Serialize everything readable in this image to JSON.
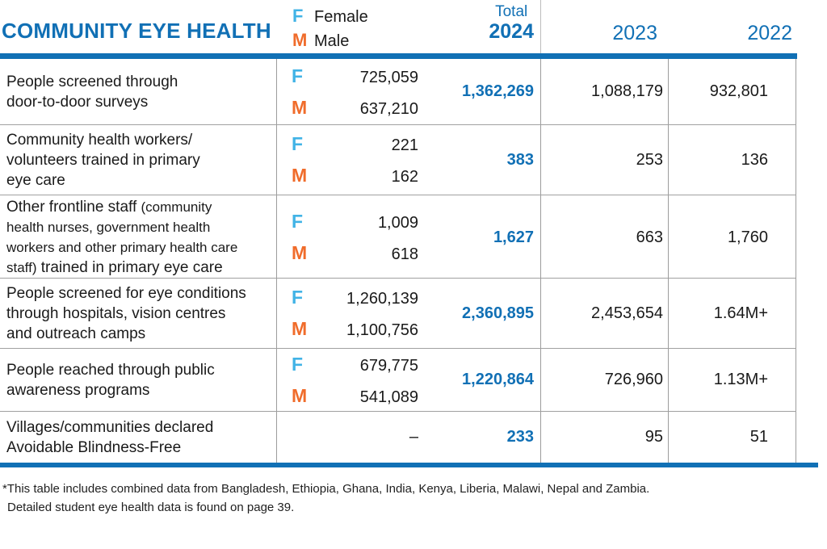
{
  "colors": {
    "brand_blue": "#1170B5",
    "female_cyan": "#41B3E6",
    "male_orange": "#F06C2B",
    "grid_gray": "#9C9C9C",
    "text_dark": "#1A1A1A"
  },
  "header": {
    "title": "COMMUNITY EYE HEALTH",
    "legend": {
      "f_letter": "F",
      "female_label": "Female",
      "m_letter": "M",
      "male_label": "Male"
    },
    "columns": {
      "total_label": "Total",
      "year_2024": "2024",
      "year_2023": "2023",
      "year_2022": "2022"
    }
  },
  "table": {
    "rows": [
      {
        "label": "People screened through\ndoor-to-door surveys",
        "female": "725,059",
        "male": "637,210",
        "total_2024": "1,362,269",
        "y2023": "1,088,179",
        "y2022": "932,801"
      },
      {
        "label": "Community health workers/\nvolunteers trained in primary\neye care",
        "female": "221",
        "male": "162",
        "total_2024": "383",
        "y2023": "253",
        "y2022": "136"
      },
      {
        "label_pre": "Other frontline staff ",
        "label_small": "(community\nhealth nurses, government health\nworkers and other primary health care\nstaff)",
        "label_post": " trained in primary eye care",
        "female": "1,009",
        "male": "618",
        "total_2024": "1,627",
        "y2023": "663",
        "y2022": "1,760"
      },
      {
        "label": "People screened for eye conditions\nthrough hospitals, vision centres\nand outreach camps",
        "female": "1,260,139",
        "male": "1,100,756",
        "total_2024": "2,360,895",
        "y2023": "2,453,654",
        "y2022": "1.64M+"
      },
      {
        "label": "People reached through public\nawareness programs",
        "female": "679,775",
        "male": "541,089",
        "total_2024": "1,220,864",
        "y2023": "726,960",
        "y2022": "1.13M+"
      },
      {
        "label": "Villages/communities declared\nAvoidable Blindness-Free",
        "no_data": "–",
        "total_2024": "233",
        "y2023": "95",
        "y2022": "51"
      }
    ]
  },
  "footnote": {
    "line1": "*This table includes combined data from Bangladesh, Ethiopia, Ghana, India, Kenya, Liberia, Malawi, Nepal and Zambia.",
    "line2": "Detailed student eye health data is found on page 39."
  }
}
